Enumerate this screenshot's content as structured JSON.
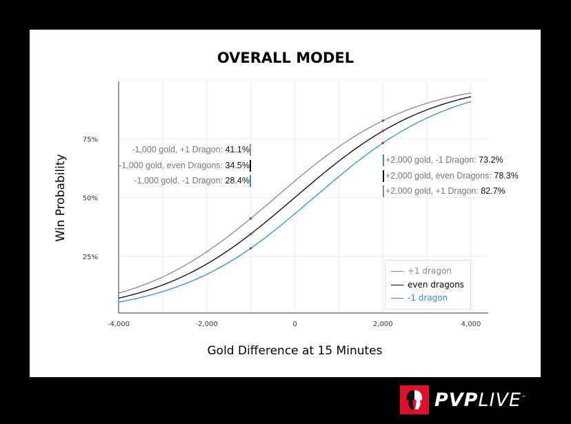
{
  "chart_data": {
    "type": "line",
    "title": "OVERALL MODEL",
    "xlabel": "Gold Difference at 15 Minutes",
    "ylabel": "Win Probability",
    "xlim": [
      -4000,
      4000
    ],
    "ylim": [
      0,
      100
    ],
    "xticks": [
      "-4,000",
      "-2,000",
      "0",
      "2,000",
      "4,000"
    ],
    "yticks": [
      "25%",
      "50%",
      "75%"
    ],
    "x": [
      -4000,
      -3000,
      -2000,
      -1000,
      0,
      1000,
      2000,
      3000,
      4000
    ],
    "series": [
      {
        "name": "+1 dragon",
        "color": "#888888",
        "values": [
          9.3,
          16.2,
          26.9,
          41.1,
          57.0,
          71.6,
          82.7,
          90.1,
          94.5
        ]
      },
      {
        "name": "even dragons",
        "color": "#000000",
        "values": [
          7.2,
          12.8,
          21.7,
          34.5,
          50.0,
          65.5,
          78.3,
          87.3,
          92.9
        ]
      },
      {
        "name": "-1 dragon",
        "color": "#2b90d9",
        "values": [
          5.5,
          10.0,
          17.3,
          28.4,
          43.1,
          58.9,
          73.2,
          83.8,
          90.8
        ]
      }
    ],
    "annotations_left": [
      {
        "label": "-1,000 gold, +1 Dragon: ",
        "value": "41.1%",
        "color": "#888888"
      },
      {
        "label": "-1,000 gold, even Dragons: ",
        "value": "34.5%",
        "color": "#000000"
      },
      {
        "label": "-1,000 gold, -1 Dragon: ",
        "value": "28.4%",
        "color": "#2b90d9"
      }
    ],
    "annotations_right": [
      {
        "label": "+2,000 gold, -1 Dragon: ",
        "value": "73.2%",
        "color": "#2b90d9"
      },
      {
        "label": "+2,000 gold, even Dragons: ",
        "value": "78.3%",
        "color": "#000000"
      },
      {
        "label": "+2,000 gold, +1 Dragon: ",
        "value": "82.7%",
        "color": "#888888"
      }
    ],
    "grid": true,
    "legend": "bottom-right"
  },
  "brand": {
    "name_bold": "PVP",
    "name_light": "LIVE",
    "tm": "™"
  }
}
